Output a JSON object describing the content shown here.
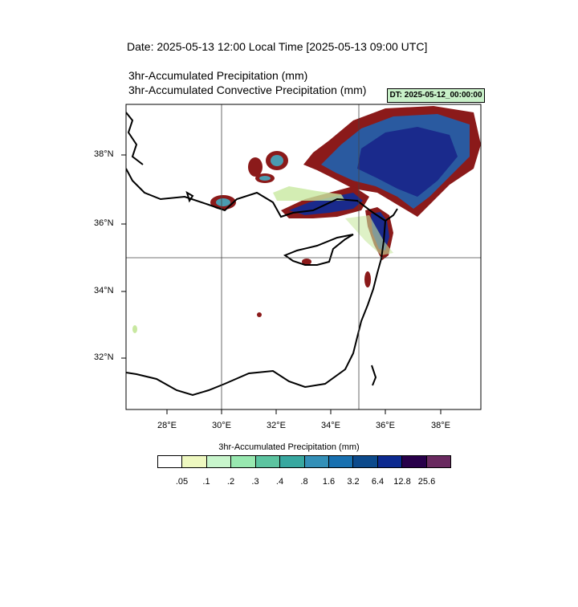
{
  "header": {
    "date_line": "Date: 2025-05-13  12:00 Local Time [2025-05-13  09:00 UTC]",
    "line1": "3hr-Accumulated Precipitation   (mm)",
    "line2": "3hr-Accumulated Convective Precipitation   (mm)",
    "dt_label": "DT: 2025-05-12_00:00:00"
  },
  "map": {
    "lon_range": [
      26.6,
      39.4
    ],
    "lat_range": [
      30.5,
      39.4
    ],
    "lon_ticks": [
      "28°E",
      "30°E",
      "32°E",
      "34°E",
      "36°E",
      "38°E"
    ],
    "lat_ticks": [
      "38°N",
      "36°N",
      "34°N",
      "32°N"
    ],
    "gridlines_lon": [
      30,
      35
    ],
    "gridlines_lat": [
      35
    ],
    "precip_fill_colors": [
      "#1a2a8c",
      "#2a5aa0",
      "#4a9bb0",
      "#c8e8a0",
      "#5a1050"
    ],
    "convective_contour_color": "#8b1a1a"
  },
  "colorbar": {
    "title": "3hr-Accumulated Precipitation   (mm)",
    "colors": [
      "#ffffff",
      "#eef8c0",
      "#c8f5cc",
      "#98e8b0",
      "#5cc4a0",
      "#38a8a0",
      "#3490b8",
      "#1870b0",
      "#0c4a8c",
      "#0c2a90",
      "#28004a",
      "#6a2a60"
    ],
    "labels": [
      ".05",
      ".1",
      ".2",
      ".3",
      ".4",
      ".8",
      "1.6",
      "3.2",
      "6.4",
      "12.8",
      "25.6"
    ]
  }
}
